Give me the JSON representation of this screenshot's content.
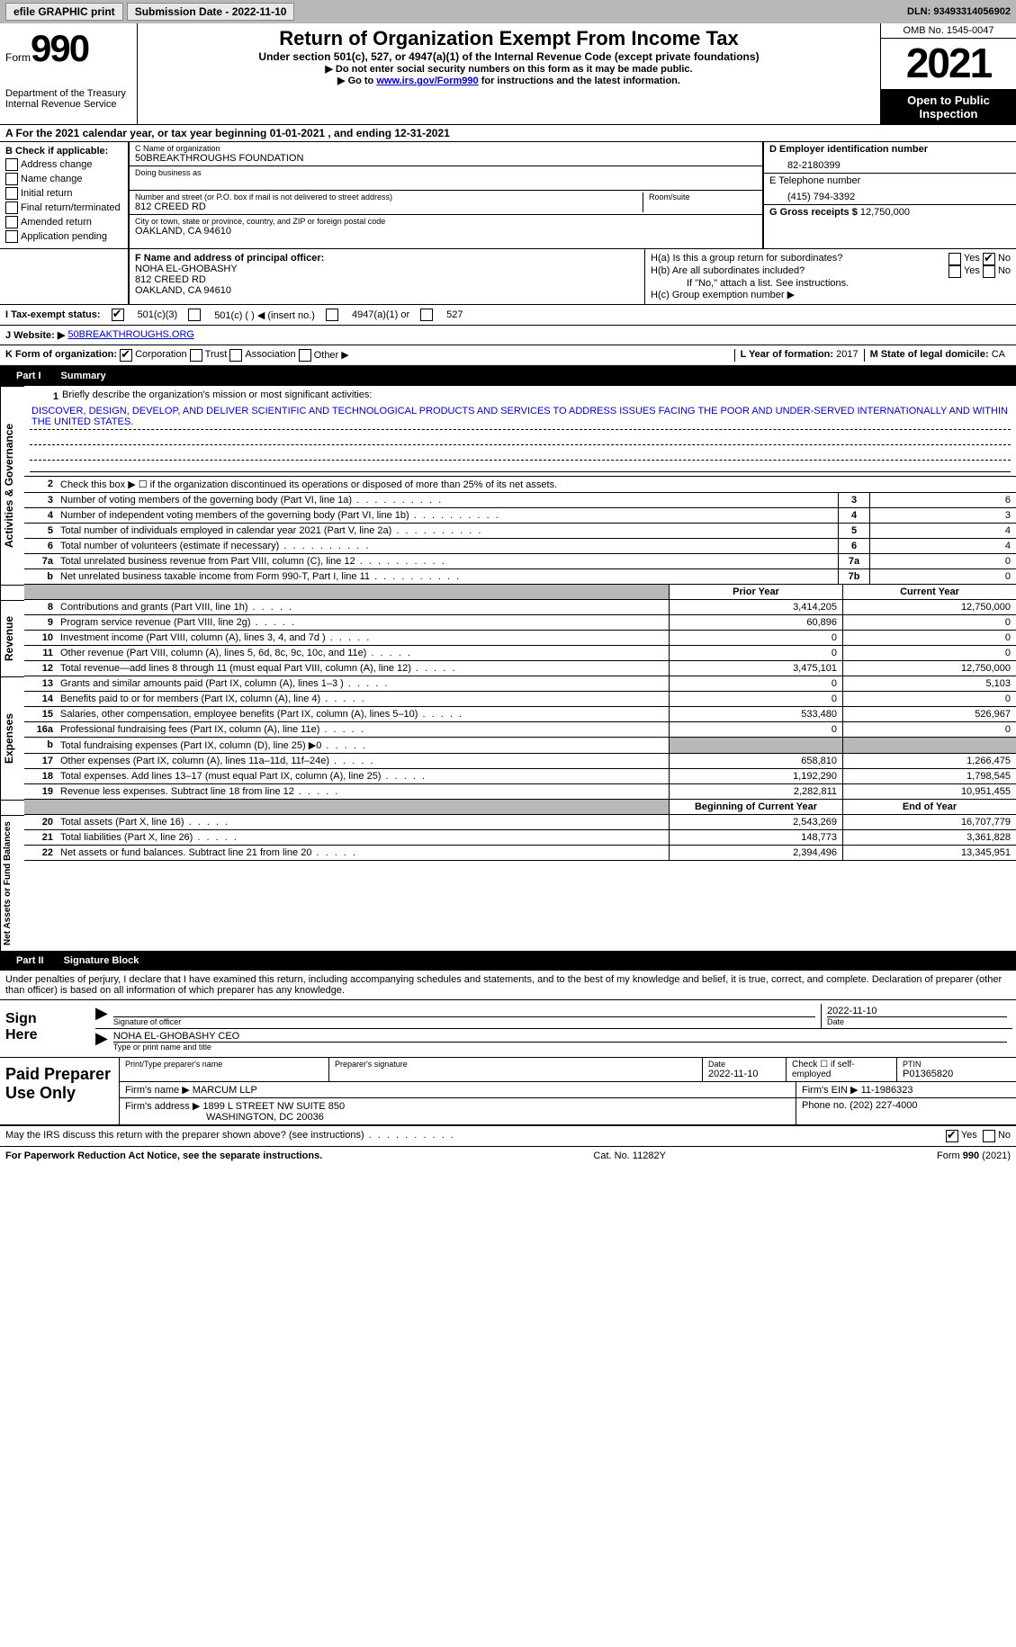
{
  "topbar": {
    "efile": "efile GRAPHIC print",
    "submission": "Submission Date - 2022-11-10",
    "dln": "DLN: 93493314056902"
  },
  "header": {
    "form_label": "Form",
    "form_num": "990",
    "title": "Return of Organization Exempt From Income Tax",
    "subtitle": "Under section 501(c), 527, or 4947(a)(1) of the Internal Revenue Code (except private foundations)",
    "instr1": "▶ Do not enter social security numbers on this form as it may be made public.",
    "instr2_pre": "▶ Go to ",
    "instr2_link": "www.irs.gov/Form990",
    "instr2_post": " for instructions and the latest information.",
    "dept": "Department of the Treasury Internal Revenue Service",
    "omb": "OMB No. 1545-0047",
    "year": "2021",
    "open": "Open to Public Inspection"
  },
  "rowA": "A For the 2021 calendar year, or tax year beginning 01-01-2021   , and ending 12-31-2021",
  "sectionB": {
    "label": "B Check if applicable:",
    "opts": [
      "Address change",
      "Name change",
      "Initial return",
      "Final return/terminated",
      "Amended return",
      "Application pending"
    ]
  },
  "sectionC": {
    "name_label": "C Name of organization",
    "name": "50BREAKTHROUGHS FOUNDATION",
    "dba_label": "Doing business as",
    "street_label": "Number and street (or P.O. box if mail is not delivered to street address)",
    "room_label": "Room/suite",
    "street": "812 CREED RD",
    "city_label": "City or town, state or province, country, and ZIP or foreign postal code",
    "city": "OAKLAND, CA  94610"
  },
  "sectionD": {
    "ein_label": "D Employer identification number",
    "ein": "82-2180399",
    "phone_label": "E Telephone number",
    "phone": "(415) 794-3392",
    "gross_label": "G Gross receipts $",
    "gross": "12,750,000"
  },
  "sectionF": {
    "label": "F Name and address of principal officer:",
    "name": "NOHA EL-GHOBASHY",
    "street": "812 CREED RD",
    "city": "OAKLAND, CA  94610"
  },
  "sectionH": {
    "a": "H(a)  Is this a group return for subordinates?",
    "b": "H(b)  Are all subordinates included?",
    "b_note": "If \"No,\" attach a list. See instructions.",
    "c": "H(c)  Group exemption number ▶",
    "yes": "Yes",
    "no": "No"
  },
  "rowI": {
    "label": "I   Tax-exempt status:",
    "o1": "501(c)(3)",
    "o2": "501(c) (  ) ◀ (insert no.)",
    "o3": "4947(a)(1) or",
    "o4": "527"
  },
  "rowJ": {
    "label": "J   Website: ▶",
    "val": "50BREAKTHROUGHS.ORG"
  },
  "rowK": {
    "label": "K Form of organization:",
    "o1": "Corporation",
    "o2": "Trust",
    "o3": "Association",
    "o4": "Other ▶",
    "l_label": "L Year of formation:",
    "l_val": "2017",
    "m_label": "M State of legal domicile:",
    "m_val": "CA"
  },
  "part1": {
    "num": "Part I",
    "title": "Summary"
  },
  "summary": {
    "s1_label": "Briefly describe the organization's mission or most significant activities:",
    "s1_text": "DISCOVER, DESIGN, DEVELOP, AND DELIVER SCIENTIFIC AND TECHNOLOGICAL PRODUCTS AND SERVICES TO ADDRESS ISSUES FACING THE POOR AND UNDER-SERVED INTERNATIONALLY AND WITHIN THE UNITED STATES.",
    "s2": "Check this box ▶ ☐ if the organization discontinued its operations or disposed of more than 25% of its net assets.",
    "lines": {
      "3": {
        "desc": "Number of voting members of the governing body (Part VI, line 1a)",
        "val": "6"
      },
      "4": {
        "desc": "Number of independent voting members of the governing body (Part VI, line 1b)",
        "val": "3"
      },
      "5": {
        "desc": "Total number of individuals employed in calendar year 2021 (Part V, line 2a)",
        "val": "4"
      },
      "6": {
        "desc": "Total number of volunteers (estimate if necessary)",
        "val": "4"
      },
      "7a": {
        "desc": "Total unrelated business revenue from Part VIII, column (C), line 12",
        "val": "0"
      },
      "7b": {
        "desc": "Net unrelated business taxable income from Form 990-T, Part I, line 11",
        "val": "0"
      }
    },
    "col_prior": "Prior Year",
    "col_current": "Current Year",
    "col_begin": "Beginning of Current Year",
    "col_end": "End of Year",
    "revenue": [
      {
        "n": "8",
        "desc": "Contributions and grants (Part VIII, line 1h)",
        "p": "3,414,205",
        "c": "12,750,000"
      },
      {
        "n": "9",
        "desc": "Program service revenue (Part VIII, line 2g)",
        "p": "60,896",
        "c": "0"
      },
      {
        "n": "10",
        "desc": "Investment income (Part VIII, column (A), lines 3, 4, and 7d )",
        "p": "0",
        "c": "0"
      },
      {
        "n": "11",
        "desc": "Other revenue (Part VIII, column (A), lines 5, 6d, 8c, 9c, 10c, and 11e)",
        "p": "0",
        "c": "0"
      },
      {
        "n": "12",
        "desc": "Total revenue—add lines 8 through 11 (must equal Part VIII, column (A), line 12)",
        "p": "3,475,101",
        "c": "12,750,000"
      }
    ],
    "expenses": [
      {
        "n": "13",
        "desc": "Grants and similar amounts paid (Part IX, column (A), lines 1–3 )",
        "p": "0",
        "c": "5,103"
      },
      {
        "n": "14",
        "desc": "Benefits paid to or for members (Part IX, column (A), line 4)",
        "p": "0",
        "c": "0"
      },
      {
        "n": "15",
        "desc": "Salaries, other compensation, employee benefits (Part IX, column (A), lines 5–10)",
        "p": "533,480",
        "c": "526,967"
      },
      {
        "n": "16a",
        "desc": "Professional fundraising fees (Part IX, column (A), line 11e)",
        "p": "0",
        "c": "0"
      },
      {
        "n": "b",
        "desc": "Total fundraising expenses (Part IX, column (D), line 25) ▶0",
        "p": "",
        "c": "",
        "gray": true
      },
      {
        "n": "17",
        "desc": "Other expenses (Part IX, column (A), lines 11a–11d, 11f–24e)",
        "p": "658,810",
        "c": "1,266,475"
      },
      {
        "n": "18",
        "desc": "Total expenses. Add lines 13–17 (must equal Part IX, column (A), line 25)",
        "p": "1,192,290",
        "c": "1,798,545"
      },
      {
        "n": "19",
        "desc": "Revenue less expenses. Subtract line 18 from line 12",
        "p": "2,282,811",
        "c": "10,951,455"
      }
    ],
    "netassets": [
      {
        "n": "20",
        "desc": "Total assets (Part X, line 16)",
        "p": "2,543,269",
        "c": "16,707,779"
      },
      {
        "n": "21",
        "desc": "Total liabilities (Part X, line 26)",
        "p": "148,773",
        "c": "3,361,828"
      },
      {
        "n": "22",
        "desc": "Net assets or fund balances. Subtract line 21 from line 20",
        "p": "2,394,496",
        "c": "13,345,951"
      }
    ],
    "side_gov": "Activities & Governance",
    "side_rev": "Revenue",
    "side_exp": "Expenses",
    "side_net": "Net Assets or Fund Balances"
  },
  "part2": {
    "num": "Part II",
    "title": "Signature Block",
    "decl": "Under penalties of perjury, I declare that I have examined this return, including accompanying schedules and statements, and to the best of my knowledge and belief, it is true, correct, and complete. Declaration of preparer (other than officer) is based on all information of which preparer has any knowledge."
  },
  "sign": {
    "left": "Sign Here",
    "sig_label": "Signature of officer",
    "date": "2022-11-10",
    "date_label": "Date",
    "name": "NOHA EL-GHOBASHY CEO",
    "name_label": "Type or print name and title"
  },
  "prep": {
    "left": "Paid Preparer Use Only",
    "r1": {
      "c1": "Print/Type preparer's name",
      "c2": "Preparer's signature",
      "c3l": "Date",
      "c3v": "2022-11-10",
      "c4": "Check ☐ if self-employed",
      "c5l": "PTIN",
      "c5v": "P01365820"
    },
    "r2": {
      "label": "Firm's name    ▶",
      "val": "MARCUM LLP",
      "ein_l": "Firm's EIN ▶",
      "ein_v": "11-1986323"
    },
    "r3": {
      "label": "Firm's address ▶",
      "val1": "1899 L STREET NW SUITE 850",
      "val2": "WASHINGTON, DC  20036",
      "ph_l": "Phone no.",
      "ph_v": "(202) 227-4000"
    }
  },
  "discuss": {
    "q": "May the IRS discuss this return with the preparer shown above? (see instructions)",
    "yes": "Yes",
    "no": "No"
  },
  "footer": {
    "left": "For Paperwork Reduction Act Notice, see the separate instructions.",
    "mid": "Cat. No. 11282Y",
    "right": "Form 990 (2021)"
  }
}
